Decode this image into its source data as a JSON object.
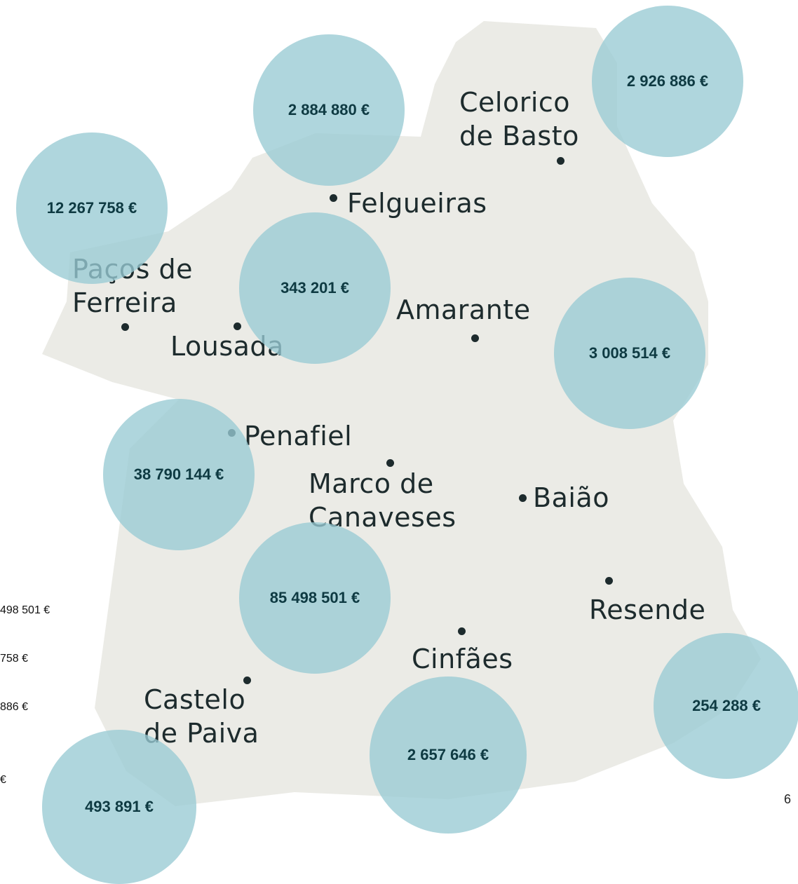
{
  "places": [
    {
      "lines": [
        "Celorico",
        "de Basto"
      ]
    },
    {
      "lines": [
        "Felgueiras"
      ]
    },
    {
      "lines": [
        "Paços de",
        "Ferreira"
      ]
    },
    {
      "lines": [
        "Lousada"
      ]
    },
    {
      "lines": [
        "Amarante"
      ]
    },
    {
      "lines": [
        "Penafiel"
      ]
    },
    {
      "lines": [
        "Marco de",
        "Canaveses"
      ]
    },
    {
      "lines": [
        "Baião"
      ]
    },
    {
      "lines": [
        "Resende"
      ]
    },
    {
      "lines": [
        "Cinfães"
      ]
    },
    {
      "lines": [
        "Castelo",
        "de Paiva"
      ]
    }
  ],
  "bubbles": [
    "2 884 880 €",
    "2 926 886 €",
    "12 267 758 €",
    "343 201 €",
    "3 008 514 €",
    "38 790 144 €",
    "85 498 501 €",
    "254 288 €",
    "2 657 646 €",
    "493 891 €"
  ],
  "side_labels": [
    "498 501 €",
    "758 €",
    "886 €",
    "€"
  ],
  "page_number": "6"
}
